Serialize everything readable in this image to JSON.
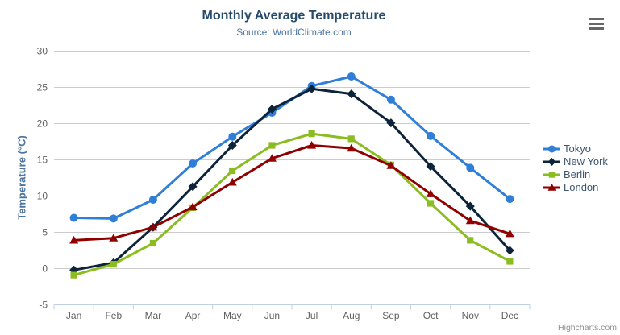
{
  "credits": {
    "label": "Highcharts.com"
  },
  "icons": {
    "context_menu": "hamburger-menu"
  },
  "chart_data": {
    "type": "line",
    "title": "Monthly Average Temperature",
    "subtitle": "Source: WorldClimate.com",
    "xlabel": "",
    "ylabel": "Temperature (°C)",
    "categories": [
      "Jan",
      "Feb",
      "Mar",
      "Apr",
      "May",
      "Jun",
      "Jul",
      "Aug",
      "Sep",
      "Oct",
      "Nov",
      "Dec"
    ],
    "ylim": [
      -5,
      30
    ],
    "ytick_interval": 5,
    "grid": true,
    "legend_position": "right-middle",
    "colors": {
      "grid_line": "#cccccc",
      "axis_line": "#c0d0e0",
      "axis_label": "#606060",
      "title_text": "#274b6d",
      "subtitle_text": "#4d759e",
      "legend_text": "#3E576F"
    },
    "series": [
      {
        "name": "Tokyo",
        "color": "#2f7ed8",
        "marker": "circle",
        "values": [
          7.0,
          6.9,
          9.5,
          14.5,
          18.2,
          21.5,
          25.2,
          26.5,
          23.3,
          18.3,
          13.9,
          9.6
        ]
      },
      {
        "name": "New York",
        "color": "#0d233a",
        "marker": "diamond",
        "values": [
          -0.2,
          0.8,
          5.7,
          11.3,
          17.0,
          22.0,
          24.8,
          24.1,
          20.1,
          14.1,
          8.6,
          2.5
        ]
      },
      {
        "name": "Berlin",
        "color": "#8bbc21",
        "marker": "square",
        "values": [
          -0.9,
          0.6,
          3.5,
          8.4,
          13.5,
          17.0,
          18.6,
          17.9,
          14.3,
          9.0,
          3.9,
          1.0
        ]
      },
      {
        "name": "London",
        "color": "#910000",
        "marker": "triangle",
        "values": [
          3.9,
          4.2,
          5.7,
          8.5,
          11.9,
          15.2,
          17.0,
          16.6,
          14.2,
          10.3,
          6.6,
          4.8
        ]
      }
    ]
  }
}
